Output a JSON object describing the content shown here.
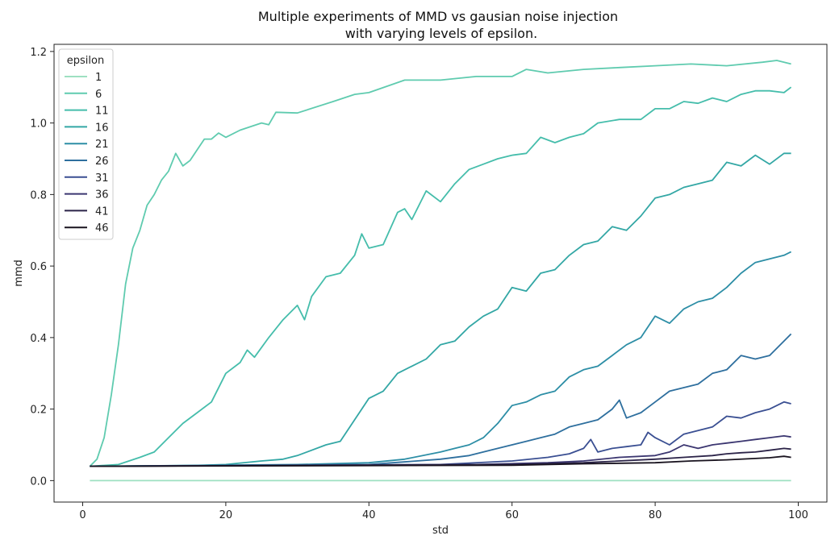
{
  "chart_data": {
    "type": "line",
    "title_lines": [
      "Multiple experiments of MMD vs gausian noise injection",
      "with varying levels of epsilon."
    ],
    "xlabel": "std",
    "ylabel": "mmd",
    "xlim": [
      -4,
      104
    ],
    "ylim": [
      -0.06,
      1.22
    ],
    "xticks": [
      0,
      20,
      40,
      60,
      80,
      100
    ],
    "yticks": [
      0.0,
      0.2,
      0.4,
      0.6,
      0.8,
      1.0,
      1.2
    ],
    "xtick_labels": [
      "0",
      "20",
      "40",
      "60",
      "80",
      "100"
    ],
    "ytick_labels": [
      "0.0",
      "0.2",
      "0.4",
      "0.6",
      "0.8",
      "1.0",
      "1.2"
    ],
    "grid": false,
    "legend": {
      "title": "epsilon",
      "placement": "top-left"
    },
    "series": [
      {
        "name": "1",
        "color": "#9ee0c1",
        "points": [
          [
            1,
            0.0
          ],
          [
            99,
            0.0
          ]
        ]
      },
      {
        "name": "6",
        "color": "#5fcbaf",
        "points": [
          [
            1,
            0.04
          ],
          [
            2,
            0.06
          ],
          [
            3,
            0.12
          ],
          [
            4,
            0.24
          ],
          [
            5,
            0.38
          ],
          [
            6,
            0.55
          ],
          [
            7,
            0.65
          ],
          [
            8,
            0.7
          ],
          [
            9,
            0.77
          ],
          [
            10,
            0.8
          ],
          [
            11,
            0.84
          ],
          [
            12,
            0.865
          ],
          [
            13,
            0.915
          ],
          [
            14,
            0.88
          ],
          [
            15,
            0.895
          ],
          [
            16,
            0.925
          ],
          [
            17,
            0.955
          ],
          [
            18,
            0.955
          ],
          [
            19,
            0.972
          ],
          [
            20,
            0.96
          ],
          [
            22,
            0.98
          ],
          [
            25,
            1.0
          ],
          [
            26,
            0.995
          ],
          [
            27,
            1.03
          ],
          [
            30,
            1.028
          ],
          [
            35,
            1.06
          ],
          [
            38,
            1.08
          ],
          [
            40,
            1.085
          ],
          [
            45,
            1.12
          ],
          [
            50,
            1.12
          ],
          [
            55,
            1.13
          ],
          [
            60,
            1.13
          ],
          [
            62,
            1.15
          ],
          [
            65,
            1.14
          ],
          [
            70,
            1.15
          ],
          [
            75,
            1.155
          ],
          [
            80,
            1.16
          ],
          [
            85,
            1.165
          ],
          [
            90,
            1.16
          ],
          [
            95,
            1.17
          ],
          [
            97,
            1.175
          ],
          [
            99,
            1.165
          ]
        ]
      },
      {
        "name": "11",
        "color": "#45bdab",
        "points": [
          [
            1,
            0.04
          ],
          [
            5,
            0.045
          ],
          [
            8,
            0.065
          ],
          [
            10,
            0.08
          ],
          [
            12,
            0.12
          ],
          [
            14,
            0.16
          ],
          [
            16,
            0.19
          ],
          [
            18,
            0.22
          ],
          [
            20,
            0.3
          ],
          [
            22,
            0.33
          ],
          [
            23,
            0.365
          ],
          [
            24,
            0.345
          ],
          [
            26,
            0.4
          ],
          [
            28,
            0.45
          ],
          [
            30,
            0.49
          ],
          [
            31,
            0.45
          ],
          [
            32,
            0.515
          ],
          [
            34,
            0.57
          ],
          [
            36,
            0.58
          ],
          [
            38,
            0.63
          ],
          [
            39,
            0.69
          ],
          [
            40,
            0.65
          ],
          [
            42,
            0.66
          ],
          [
            44,
            0.75
          ],
          [
            45,
            0.76
          ],
          [
            46,
            0.73
          ],
          [
            48,
            0.81
          ],
          [
            50,
            0.78
          ],
          [
            52,
            0.83
          ],
          [
            54,
            0.87
          ],
          [
            56,
            0.885
          ],
          [
            58,
            0.9
          ],
          [
            60,
            0.91
          ],
          [
            62,
            0.915
          ],
          [
            64,
            0.96
          ],
          [
            66,
            0.945
          ],
          [
            68,
            0.96
          ],
          [
            70,
            0.97
          ],
          [
            72,
            1.0
          ],
          [
            75,
            1.01
          ],
          [
            78,
            1.01
          ],
          [
            80,
            1.04
          ],
          [
            82,
            1.04
          ],
          [
            84,
            1.06
          ],
          [
            86,
            1.055
          ],
          [
            88,
            1.07
          ],
          [
            90,
            1.06
          ],
          [
            92,
            1.08
          ],
          [
            94,
            1.09
          ],
          [
            96,
            1.09
          ],
          [
            98,
            1.085
          ],
          [
            99,
            1.1
          ]
        ]
      },
      {
        "name": "16",
        "color": "#33a7a5",
        "points": [
          [
            1,
            0.04
          ],
          [
            15,
            0.042
          ],
          [
            20,
            0.045
          ],
          [
            25,
            0.055
          ],
          [
            28,
            0.06
          ],
          [
            30,
            0.07
          ],
          [
            34,
            0.1
          ],
          [
            36,
            0.11
          ],
          [
            38,
            0.17
          ],
          [
            40,
            0.23
          ],
          [
            42,
            0.25
          ],
          [
            44,
            0.3
          ],
          [
            46,
            0.32
          ],
          [
            48,
            0.34
          ],
          [
            50,
            0.38
          ],
          [
            52,
            0.39
          ],
          [
            54,
            0.43
          ],
          [
            56,
            0.46
          ],
          [
            58,
            0.48
          ],
          [
            60,
            0.54
          ],
          [
            62,
            0.53
          ],
          [
            64,
            0.58
          ],
          [
            66,
            0.59
          ],
          [
            68,
            0.63
          ],
          [
            70,
            0.66
          ],
          [
            72,
            0.67
          ],
          [
            74,
            0.71
          ],
          [
            76,
            0.7
          ],
          [
            78,
            0.74
          ],
          [
            80,
            0.79
          ],
          [
            82,
            0.8
          ],
          [
            84,
            0.82
          ],
          [
            86,
            0.83
          ],
          [
            88,
            0.84
          ],
          [
            90,
            0.89
          ],
          [
            92,
            0.88
          ],
          [
            94,
            0.91
          ],
          [
            96,
            0.885
          ],
          [
            98,
            0.915
          ],
          [
            99,
            0.915
          ]
        ]
      },
      {
        "name": "21",
        "color": "#2d8ea6",
        "points": [
          [
            1,
            0.04
          ],
          [
            30,
            0.045
          ],
          [
            40,
            0.05
          ],
          [
            45,
            0.06
          ],
          [
            50,
            0.08
          ],
          [
            52,
            0.09
          ],
          [
            54,
            0.1
          ],
          [
            56,
            0.12
          ],
          [
            58,
            0.16
          ],
          [
            60,
            0.21
          ],
          [
            62,
            0.22
          ],
          [
            64,
            0.24
          ],
          [
            66,
            0.25
          ],
          [
            68,
            0.29
          ],
          [
            70,
            0.31
          ],
          [
            72,
            0.32
          ],
          [
            74,
            0.35
          ],
          [
            76,
            0.38
          ],
          [
            78,
            0.4
          ],
          [
            80,
            0.46
          ],
          [
            82,
            0.44
          ],
          [
            84,
            0.48
          ],
          [
            86,
            0.5
          ],
          [
            88,
            0.51
          ],
          [
            90,
            0.54
          ],
          [
            92,
            0.58
          ],
          [
            94,
            0.61
          ],
          [
            96,
            0.62
          ],
          [
            98,
            0.63
          ],
          [
            99,
            0.64
          ]
        ]
      },
      {
        "name": "26",
        "color": "#2e6f9e",
        "points": [
          [
            1,
            0.04
          ],
          [
            40,
            0.045
          ],
          [
            50,
            0.06
          ],
          [
            54,
            0.07
          ],
          [
            58,
            0.09
          ],
          [
            60,
            0.1
          ],
          [
            62,
            0.11
          ],
          [
            64,
            0.12
          ],
          [
            66,
            0.13
          ],
          [
            68,
            0.15
          ],
          [
            70,
            0.16
          ],
          [
            72,
            0.17
          ],
          [
            74,
            0.2
          ],
          [
            75,
            0.225
          ],
          [
            76,
            0.175
          ],
          [
            78,
            0.19
          ],
          [
            80,
            0.22
          ],
          [
            82,
            0.25
          ],
          [
            84,
            0.26
          ],
          [
            86,
            0.27
          ],
          [
            88,
            0.3
          ],
          [
            90,
            0.31
          ],
          [
            92,
            0.35
          ],
          [
            94,
            0.34
          ],
          [
            96,
            0.35
          ],
          [
            98,
            0.39
          ],
          [
            99,
            0.41
          ]
        ]
      },
      {
        "name": "31",
        "color": "#3a4f92",
        "points": [
          [
            1,
            0.04
          ],
          [
            50,
            0.045
          ],
          [
            60,
            0.055
          ],
          [
            65,
            0.065
          ],
          [
            68,
            0.075
          ],
          [
            70,
            0.09
          ],
          [
            71,
            0.115
          ],
          [
            72,
            0.08
          ],
          [
            74,
            0.09
          ],
          [
            76,
            0.095
          ],
          [
            78,
            0.1
          ],
          [
            79,
            0.135
          ],
          [
            80,
            0.12
          ],
          [
            82,
            0.1
          ],
          [
            84,
            0.13
          ],
          [
            86,
            0.14
          ],
          [
            88,
            0.15
          ],
          [
            90,
            0.18
          ],
          [
            92,
            0.175
          ],
          [
            94,
            0.19
          ],
          [
            96,
            0.2
          ],
          [
            98,
            0.22
          ],
          [
            99,
            0.215
          ]
        ]
      },
      {
        "name": "36",
        "color": "#3b3670",
        "points": [
          [
            1,
            0.04
          ],
          [
            55,
            0.045
          ],
          [
            65,
            0.05
          ],
          [
            70,
            0.055
          ],
          [
            75,
            0.065
          ],
          [
            80,
            0.07
          ],
          [
            82,
            0.08
          ],
          [
            84,
            0.1
          ],
          [
            86,
            0.09
          ],
          [
            88,
            0.1
          ],
          [
            90,
            0.105
          ],
          [
            92,
            0.11
          ],
          [
            94,
            0.115
          ],
          [
            96,
            0.12
          ],
          [
            98,
            0.125
          ],
          [
            99,
            0.122
          ]
        ]
      },
      {
        "name": "41",
        "color": "#2b2348",
        "points": [
          [
            1,
            0.04
          ],
          [
            60,
            0.045
          ],
          [
            70,
            0.05
          ],
          [
            80,
            0.06
          ],
          [
            84,
            0.065
          ],
          [
            88,
            0.07
          ],
          [
            90,
            0.075
          ],
          [
            92,
            0.078
          ],
          [
            94,
            0.08
          ],
          [
            96,
            0.085
          ],
          [
            98,
            0.09
          ],
          [
            99,
            0.088
          ]
        ]
      },
      {
        "name": "46",
        "color": "#19131f",
        "points": [
          [
            1,
            0.04
          ],
          [
            60,
            0.043
          ],
          [
            70,
            0.047
          ],
          [
            80,
            0.05
          ],
          [
            85,
            0.055
          ],
          [
            90,
            0.058
          ],
          [
            94,
            0.062
          ],
          [
            96,
            0.064
          ],
          [
            98,
            0.068
          ],
          [
            99,
            0.065
          ]
        ]
      }
    ]
  }
}
